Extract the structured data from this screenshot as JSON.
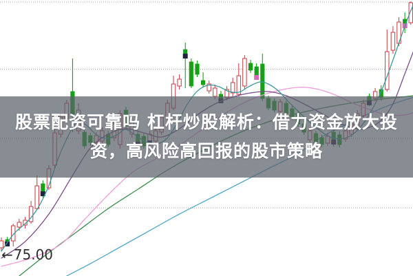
{
  "overlay": {
    "line1": "股票配资可靠吗 杠杆炒股解析：借力资金放大投",
    "line2": "资，高风险高回报的股市策略",
    "text_color": "#ffffff",
    "band_color": "rgba(90,95,105,0.72)"
  },
  "price_label": {
    "arrow": "←",
    "value": "75.00",
    "color": "#2f2f2f"
  },
  "chart_data": {
    "type": "candlestick",
    "title": "股票配资可靠吗 杠杆炒股解析：借力资金放大投资，高风险高回报的股市策略",
    "grid": "dotted-horizontal",
    "legend": "none",
    "ylim": [
      67.5,
      167.75
    ],
    "y_axis_visible_label": "75.00",
    "gridline_prices": [
      167.0,
      142.6,
      117.5,
      92.25
    ],
    "colors": {
      "up_candle": "#c74a50",
      "down_candle": "#17a017",
      "grid": "#a0a0a0",
      "marker_navy": "#222240",
      "marker_pink": "#d46ab8",
      "ma_teal": "#3a9a9a",
      "ma_purple": "#7b4a8b",
      "ma_pink": "#ef9cd9",
      "ma_green": "#3a8d4a",
      "ma_cyan": "#55a8c8"
    },
    "candles": [
      [
        77.75,
        81.5,
        76.5,
        80.25
      ],
      [
        80.75,
        81.75,
        78.25,
        79.0,
        "n"
      ],
      [
        80.25,
        86.5,
        78.25,
        85.75
      ],
      [
        85.25,
        88.25,
        84.0,
        87.0
      ],
      [
        86.0,
        89.0,
        84.75,
        87.75
      ],
      [
        87.25,
        94.75,
        86.5,
        92.75
      ],
      [
        92.0,
        104.0,
        91.5,
        100.25
      ],
      [
        101.0,
        102.25,
        96.0,
        97.25,
        "n"
      ],
      [
        99.5,
        107.75,
        98.75,
        106.5
      ],
      [
        107.75,
        120.75,
        106.5,
        119.5
      ],
      [
        119.0,
        126.5,
        117.75,
        125.25
      ],
      [
        124.75,
        131.5,
        123.75,
        130.25
      ],
      [
        134.5,
        146.5,
        119.75,
        126.0
      ],
      [
        120.25,
        130.25,
        119.0,
        127.75
      ],
      [
        119.75,
        120.75,
        113.75,
        114.75
      ],
      [
        118.5,
        119.5,
        114.75,
        116.0
      ],
      [
        116.0,
        119.75,
        114.75,
        118.5
      ],
      [
        116.5,
        121.5,
        115.25,
        120.25
      ],
      [
        119.0,
        120.25,
        114.25,
        115.25
      ],
      [
        117.75,
        124.0,
        116.5,
        122.75
      ],
      [
        115.25,
        127.75,
        113.75,
        126.5
      ],
      [
        127.75,
        129.0,
        120.75,
        122.0
      ],
      [
        119.0,
        125.25,
        117.75,
        124.0
      ],
      [
        119.0,
        120.25,
        114.0,
        115.25,
        "n"
      ],
      [
        118.25,
        119.25,
        113.75,
        114.75
      ],
      [
        115.75,
        120.25,
        114.75,
        119.0,
        "n"
      ],
      [
        116.5,
        121.5,
        115.5,
        120.25
      ],
      [
        119.75,
        126.5,
        118.75,
        125.25
      ],
      [
        124.75,
        131.5,
        123.75,
        130.25
      ],
      [
        128.5,
        140.25,
        127.75,
        137.25
      ],
      [
        136.5,
        140.75,
        135.25,
        139.0
      ],
      [
        149.75,
        152.25,
        135.75,
        147.25,
        "n"
      ],
      [
        145.25,
        146.5,
        135.75,
        136.5
      ],
      [
        144.5,
        145.75,
        139.75,
        140.75
      ],
      [
        138.5,
        141.5,
        136.0,
        137.0
      ],
      [
        134.75,
        138.5,
        133.75,
        137.25
      ],
      [
        132.75,
        137.0,
        131.75,
        135.75
      ],
      [
        133.5,
        134.75,
        130.25,
        131.0,
        "n"
      ],
      [
        132.25,
        136.5,
        131.25,
        135.25
      ],
      [
        134.0,
        139.5,
        132.75,
        137.75
      ],
      [
        133.5,
        144.75,
        132.75,
        140.25
      ],
      [
        136.5,
        147.75,
        135.25,
        146.5
      ],
      [
        144.75,
        146.0,
        141.25,
        142.25
      ],
      [
        143.5,
        144.75,
        138.75,
        139.5,
        "p"
      ],
      [
        144.5,
        148.25,
        131.0,
        132.0
      ],
      [
        132.0,
        133.0,
        127.75,
        128.5
      ],
      [
        131.0,
        132.0,
        127.0,
        127.75
      ],
      [
        127.25,
        131.75,
        126.25,
        130.75
      ],
      [
        130.25,
        131.25,
        125.5,
        126.5
      ],
      [
        128.25,
        129.25,
        124.25,
        125.25
      ],
      [
        126.5,
        127.75,
        121.75,
        122.75
      ],
      [
        122.75,
        123.75,
        118.75,
        119.75
      ],
      [
        117.0,
        121.5,
        116.0,
        120.25
      ],
      [
        119.25,
        120.25,
        115.25,
        116.25
      ],
      [
        117.75,
        118.75,
        114.25,
        115.25
      ],
      [
        115.75,
        119.5,
        114.75,
        118.25
      ],
      [
        119.75,
        120.75,
        114.5,
        116.0,
        "n"
      ],
      [
        118.75,
        120.0,
        114.25,
        115.25
      ],
      [
        117.25,
        121.5,
        116.25,
        120.25
      ],
      [
        119.0,
        124.0,
        118.0,
        122.75
      ],
      [
        121.5,
        127.75,
        120.5,
        126.5
      ],
      [
        125.75,
        131.5,
        124.75,
        130.25
      ],
      [
        132.75,
        133.75,
        129.25,
        130.25,
        "n"
      ],
      [
        132.0,
        135.75,
        131.0,
        134.5
      ],
      [
        135.25,
        136.75,
        131.25,
        132.25
      ],
      [
        135.25,
        157.0,
        134.5,
        149.0
      ],
      [
        149.5,
        158.25,
        148.25,
        156.0
      ],
      [
        152.0,
        161.5,
        151.0,
        159.75
      ],
      [
        160.75,
        163.25,
        155.75,
        158.25,
        "p"
      ],
      [
        159.5,
        167.25,
        158.75,
        166.75
      ]
    ],
    "ma_lines": [
      {
        "name": "ma-green-long",
        "color": "#3a8d4a",
        "points": [
          [
            3,
            67.5
          ],
          [
            8,
            76
          ],
          [
            13,
            84
          ],
          [
            18,
            92
          ],
          [
            23,
            99
          ],
          [
            28,
            106
          ],
          [
            33,
            112
          ],
          [
            38,
            117.5
          ],
          [
            43,
            122
          ],
          [
            48,
            125.5
          ],
          [
            53,
            128
          ],
          [
            58,
            130
          ],
          [
            63,
            131.5
          ],
          [
            69.6,
            133
          ]
        ]
      },
      {
        "name": "ma-cyan-longest",
        "color": "#55a8c8",
        "points": [
          [
            11,
            67.5
          ],
          [
            15,
            72
          ],
          [
            20,
            78
          ],
          [
            25,
            84
          ],
          [
            30,
            90
          ],
          [
            35,
            95.5
          ],
          [
            40,
            101
          ],
          [
            45,
            106.5
          ],
          [
            50,
            112
          ],
          [
            54,
            118
          ],
          [
            58,
            122.5
          ],
          [
            62,
            126.5
          ],
          [
            66,
            130
          ],
          [
            69.6,
            132.5
          ]
        ]
      },
      {
        "name": "ma-pink",
        "color": "#ef9cd9",
        "points": [
          [
            0,
            71
          ],
          [
            5,
            74
          ],
          [
            10,
            79
          ],
          [
            14,
            88
          ],
          [
            18,
            97
          ],
          [
            22,
            105
          ],
          [
            26,
            110
          ],
          [
            30,
            115
          ],
          [
            34,
            121
          ],
          [
            38,
            127
          ],
          [
            42,
            131.5
          ],
          [
            46,
            134.5
          ],
          [
            50,
            136
          ],
          [
            53,
            135.5
          ],
          [
            56,
            133.5
          ],
          [
            59,
            130.5
          ],
          [
            62,
            128
          ],
          [
            65,
            126
          ],
          [
            68,
            126
          ],
          [
            69.6,
            127
          ]
        ]
      },
      {
        "name": "ma-purple",
        "color": "#7b4a8b",
        "points": [
          [
            0,
            74
          ],
          [
            4,
            80
          ],
          [
            8,
            90
          ],
          [
            12,
            104
          ],
          [
            15,
            114
          ],
          [
            18,
            119
          ],
          [
            21,
            121
          ],
          [
            24,
            119.5
          ],
          [
            27,
            118
          ],
          [
            30,
            121
          ],
          [
            33,
            126
          ],
          [
            36,
            130
          ],
          [
            39,
            132.5
          ],
          [
            42,
            134
          ],
          [
            45,
            134.5
          ],
          [
            48,
            133
          ],
          [
            51,
            130
          ],
          [
            54,
            126.5
          ],
          [
            57,
            123
          ],
          [
            60,
            121
          ],
          [
            62,
            121.5
          ],
          [
            64,
            124
          ],
          [
            66,
            130
          ],
          [
            68,
            141
          ],
          [
            69.6,
            150
          ]
        ]
      },
      {
        "name": "ma-teal-short",
        "color": "#3a9a9a",
        "points": [
          [
            0,
            76.5
          ],
          [
            2.1,
            82.8
          ],
          [
            4.4,
            87.3
          ],
          [
            6.1,
            92
          ],
          [
            7.9,
            99.8
          ],
          [
            9.6,
            110.3
          ],
          [
            11.4,
            119
          ],
          [
            12.7,
            123.3
          ],
          [
            14.3,
            122.3
          ],
          [
            16,
            118.8
          ],
          [
            17.7,
            117.5
          ],
          [
            19.5,
            118.8
          ],
          [
            20.9,
            120.8
          ],
          [
            22.5,
            118.8
          ],
          [
            24.3,
            116.3
          ],
          [
            26.2,
            115.5
          ],
          [
            27.9,
            117.5
          ],
          [
            29.7,
            123.3
          ],
          [
            31.3,
            129.8
          ],
          [
            33.1,
            134.8
          ],
          [
            34.9,
            136.8
          ],
          [
            36.6,
            136.3
          ],
          [
            38.4,
            134.5
          ],
          [
            40.1,
            134.3
          ],
          [
            41.7,
            136.3
          ],
          [
            43.6,
            138
          ],
          [
            45.2,
            137
          ],
          [
            46.8,
            134.5
          ],
          [
            48.4,
            130.8
          ],
          [
            50.2,
            127
          ],
          [
            51.9,
            123.5
          ],
          [
            53.7,
            120.3
          ],
          [
            55.4,
            118
          ],
          [
            57.1,
            117.3
          ],
          [
            58.9,
            118.5
          ],
          [
            60.6,
            121.8
          ],
          [
            62.3,
            127.3
          ],
          [
            64.1,
            135
          ],
          [
            65.8,
            144.8
          ],
          [
            67.3,
            154
          ],
          [
            68.7,
            162.3
          ],
          [
            69.3,
            165.3
          ]
        ]
      }
    ]
  }
}
